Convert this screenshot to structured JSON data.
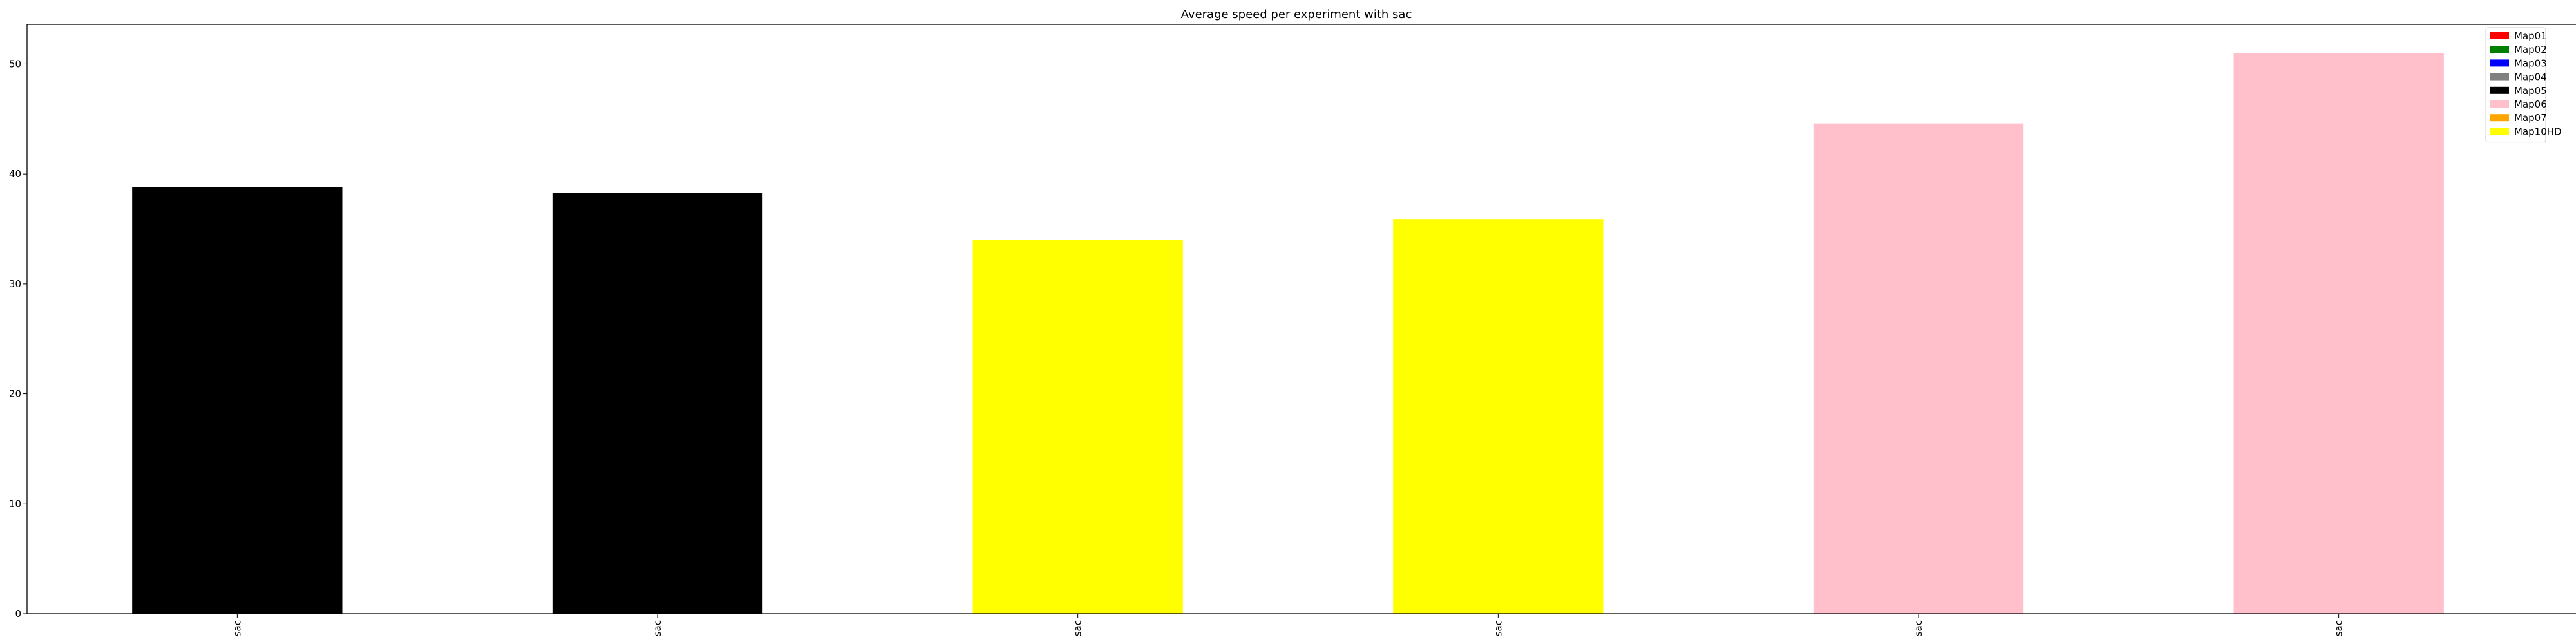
{
  "chart_data": {
    "type": "bar",
    "title": "Average speed per experiment with sac",
    "xlabel": "",
    "ylabel": "",
    "categories": [
      "sac",
      "sac",
      "sac",
      "sac",
      "sac",
      "sac"
    ],
    "values": [
      38.8,
      38.3,
      34.0,
      35.9,
      44.6,
      51.0
    ],
    "bar_colors": [
      "#000000",
      "#000000",
      "#ffff00",
      "#ffff00",
      "#ffc0cb",
      "#ffc0cb"
    ],
    "ylim": [
      0,
      53.6
    ],
    "yticks": [
      0,
      10,
      20,
      30,
      40,
      50
    ],
    "grid": false,
    "legend_position": "top-right",
    "legend": [
      {
        "label": "Map01",
        "color": "#ff0000"
      },
      {
        "label": "Map02",
        "color": "#008000"
      },
      {
        "label": "Map03",
        "color": "#0000ff"
      },
      {
        "label": "Map04",
        "color": "#808080"
      },
      {
        "label": "Map05",
        "color": "#000000"
      },
      {
        "label": "Map06",
        "color": "#ffc0cb"
      },
      {
        "label": "Map07",
        "color": "#ffa500"
      },
      {
        "label": "Map10HD",
        "color": "#ffff00"
      }
    ]
  }
}
